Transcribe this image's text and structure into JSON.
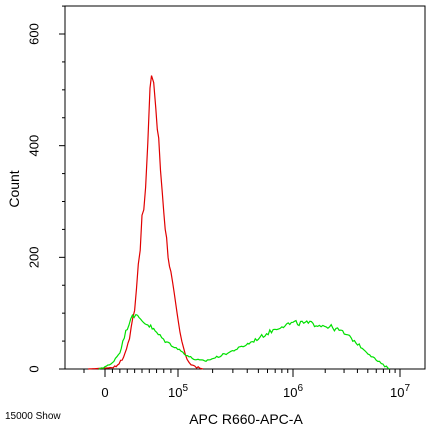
{
  "footer_label": "15000 Show",
  "chart_data": {
    "type": "line",
    "xlabel": "APC R660-APC-A",
    "ylabel": "Count",
    "x_scale": "biexponential",
    "x_ticks": [
      {
        "value": 0,
        "label": "0"
      },
      {
        "value": 100000,
        "label": "10",
        "exponent": "5"
      },
      {
        "value": 1000000,
        "label": "10",
        "exponent": "6"
      },
      {
        "value": 10000000,
        "label": "10",
        "exponent": "7"
      }
    ],
    "y_ticks": [
      0,
      200,
      400,
      600
    ],
    "ylim": [
      0,
      650
    ],
    "grid": false,
    "legend": "none",
    "series": [
      {
        "color": "#e00000",
        "points": [
          [
            -8000,
            0
          ],
          [
            5000,
            2
          ],
          [
            15000,
            5
          ],
          [
            25000,
            20
          ],
          [
            33000,
            55
          ],
          [
            40000,
            110
          ],
          [
            45000,
            190
          ],
          [
            50000,
            260
          ],
          [
            55000,
            320
          ],
          [
            58000,
            400
          ],
          [
            61000,
            480
          ],
          [
            63000,
            540
          ],
          [
            66000,
            520
          ],
          [
            69000,
            470
          ],
          [
            73000,
            400
          ],
          [
            78000,
            320
          ],
          [
            84000,
            230
          ],
          [
            90000,
            170
          ],
          [
            97000,
            110
          ],
          [
            104000,
            65
          ],
          [
            112000,
            35
          ],
          [
            120000,
            18
          ],
          [
            130000,
            8
          ],
          [
            145000,
            3
          ],
          [
            165000,
            0
          ]
        ]
      },
      {
        "color": "#00e000",
        "points": [
          [
            -3000,
            0
          ],
          [
            8000,
            8
          ],
          [
            20000,
            30
          ],
          [
            30000,
            75
          ],
          [
            37000,
            100
          ],
          [
            44000,
            92
          ],
          [
            52000,
            85
          ],
          [
            60000,
            78
          ],
          [
            70000,
            65
          ],
          [
            82000,
            50
          ],
          [
            95000,
            40
          ],
          [
            110000,
            30
          ],
          [
            125000,
            22
          ],
          [
            145000,
            16
          ],
          [
            170000,
            14
          ],
          [
            210000,
            20
          ],
          [
            280000,
            30
          ],
          [
            380000,
            42
          ],
          [
            500000,
            55
          ],
          [
            650000,
            68
          ],
          [
            800000,
            78
          ],
          [
            1000000,
            82
          ],
          [
            1300000,
            82
          ],
          [
            1700000,
            80
          ],
          [
            2200000,
            76
          ],
          [
            2800000,
            68
          ],
          [
            3500000,
            55
          ],
          [
            4300000,
            40
          ],
          [
            5200000,
            26
          ],
          [
            6200000,
            14
          ],
          [
            7200000,
            5
          ],
          [
            8000000,
            0
          ]
        ]
      }
    ]
  }
}
